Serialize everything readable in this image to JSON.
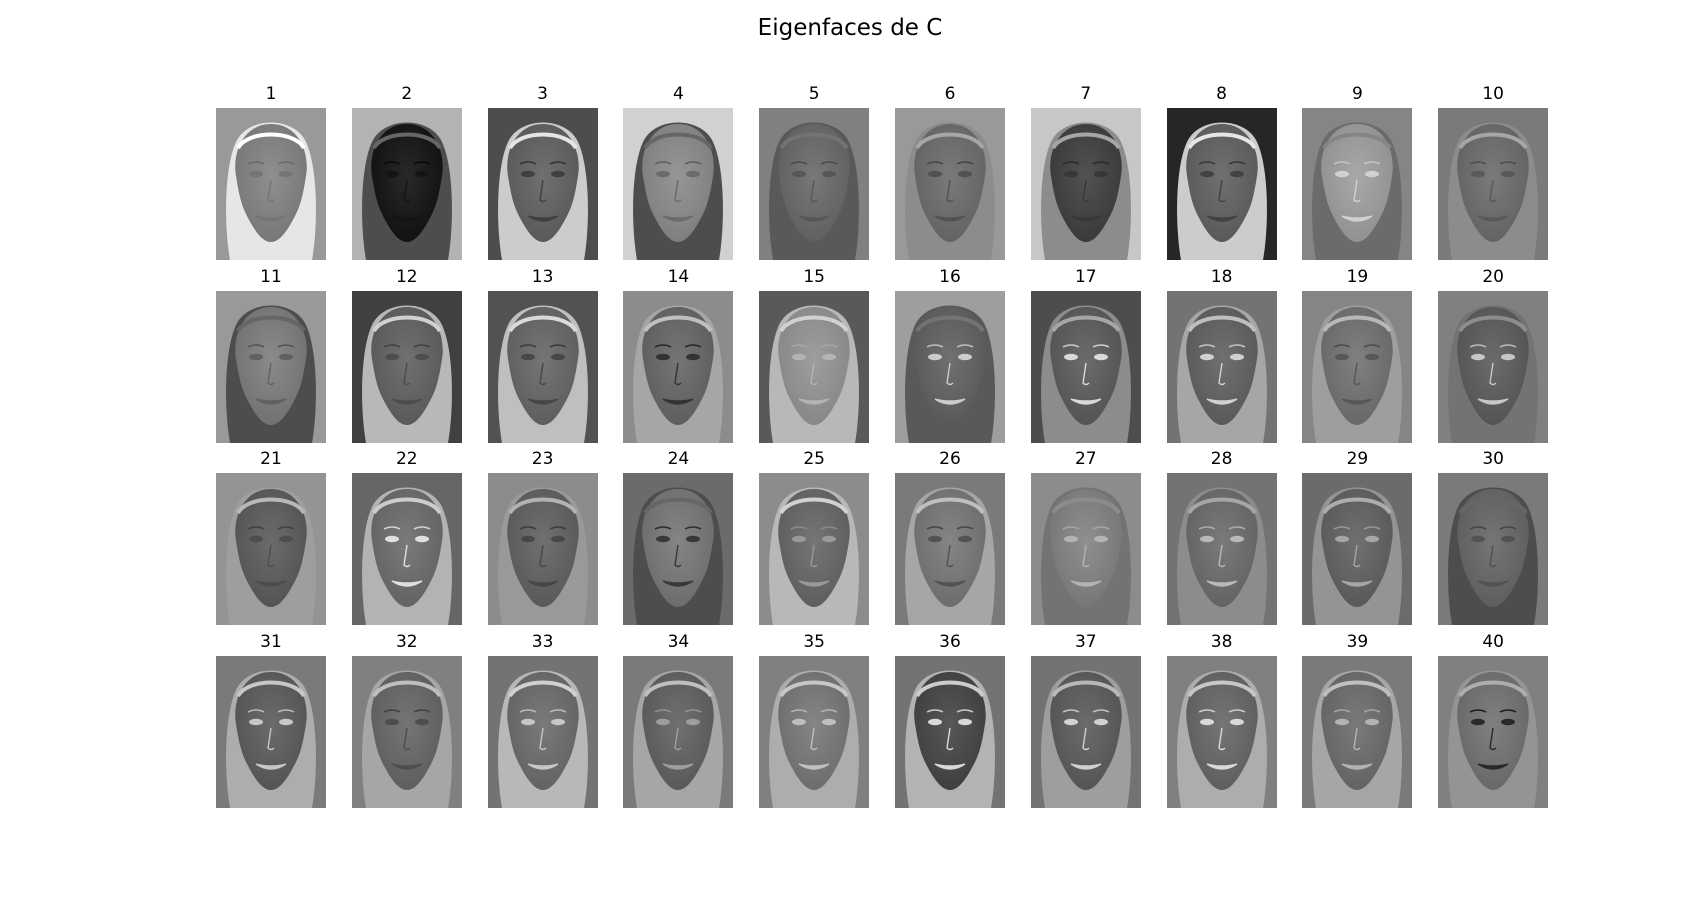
{
  "figure": {
    "title": "Eigenfaces de C"
  },
  "eigenfaces": [
    {
      "label": "1",
      "background": 0.6,
      "face": 0.52,
      "hair": 0.9,
      "features": 0.46
    },
    {
      "label": "2",
      "background": 0.7,
      "face": 0.12,
      "hair": 0.3,
      "features": 0.08
    },
    {
      "label": "3",
      "background": 0.3,
      "face": 0.4,
      "hair": 0.8,
      "features": 0.25
    },
    {
      "label": "4",
      "background": 0.82,
      "face": 0.55,
      "hair": 0.3,
      "features": 0.42
    },
    {
      "label": "5",
      "background": 0.5,
      "face": 0.43,
      "hair": 0.35,
      "features": 0.34
    },
    {
      "label": "6",
      "background": 0.6,
      "face": 0.44,
      "hair": 0.55,
      "features": 0.32
    },
    {
      "label": "7",
      "background": 0.78,
      "face": 0.28,
      "hair": 0.55,
      "features": 0.22
    },
    {
      "label": "8",
      "background": 0.15,
      "face": 0.4,
      "hair": 0.8,
      "features": 0.26
    },
    {
      "label": "9",
      "background": 0.52,
      "face": 0.62,
      "hair": 0.42,
      "features": 0.82
    },
    {
      "label": "10",
      "background": 0.48,
      "face": 0.44,
      "hair": 0.55,
      "features": 0.35
    },
    {
      "label": "11",
      "background": 0.6,
      "face": 0.5,
      "hair": 0.3,
      "features": 0.38
    },
    {
      "label": "12",
      "background": 0.25,
      "face": 0.4,
      "hair": 0.72,
      "features": 0.3
    },
    {
      "label": "13",
      "background": 0.32,
      "face": 0.42,
      "hair": 0.75,
      "features": 0.28
    },
    {
      "label": "14",
      "background": 0.55,
      "face": 0.42,
      "hair": 0.65,
      "features": 0.2
    },
    {
      "label": "15",
      "background": 0.35,
      "face": 0.58,
      "hair": 0.72,
      "features": 0.7
    },
    {
      "label": "16",
      "background": 0.62,
      "face": 0.4,
      "hair": 0.35,
      "features": 0.8
    },
    {
      "label": "17",
      "background": 0.3,
      "face": 0.38,
      "hair": 0.55,
      "features": 0.85
    },
    {
      "label": "18",
      "background": 0.45,
      "face": 0.4,
      "hair": 0.65,
      "features": 0.82
    },
    {
      "label": "19",
      "background": 0.52,
      "face": 0.46,
      "hair": 0.62,
      "features": 0.34
    },
    {
      "label": "20",
      "background": 0.5,
      "face": 0.38,
      "hair": 0.45,
      "features": 0.78
    },
    {
      "label": "21",
      "background": 0.58,
      "face": 0.38,
      "hair": 0.62,
      "features": 0.3
    },
    {
      "label": "22",
      "background": 0.4,
      "face": 0.44,
      "hair": 0.7,
      "features": 0.88
    },
    {
      "label": "23",
      "background": 0.55,
      "face": 0.4,
      "hair": 0.6,
      "features": 0.28
    },
    {
      "label": "24",
      "background": 0.42,
      "face": 0.48,
      "hair": 0.3,
      "features": 0.22
    },
    {
      "label": "25",
      "background": 0.55,
      "face": 0.42,
      "hair": 0.72,
      "features": 0.6
    },
    {
      "label": "26",
      "background": 0.48,
      "face": 0.48,
      "hair": 0.65,
      "features": 0.32
    },
    {
      "label": "27",
      "background": 0.55,
      "face": 0.52,
      "hair": 0.45,
      "features": 0.7
    },
    {
      "label": "28",
      "background": 0.45,
      "face": 0.44,
      "hair": 0.55,
      "features": 0.72
    },
    {
      "label": "29",
      "background": 0.42,
      "face": 0.4,
      "hair": 0.58,
      "features": 0.65
    },
    {
      "label": "30",
      "background": 0.48,
      "face": 0.42,
      "hair": 0.3,
      "features": 0.32
    },
    {
      "label": "31",
      "background": 0.48,
      "face": 0.38,
      "hair": 0.68,
      "features": 0.78
    },
    {
      "label": "32",
      "background": 0.5,
      "face": 0.42,
      "hair": 0.65,
      "features": 0.3
    },
    {
      "label": "33",
      "background": 0.45,
      "face": 0.44,
      "hair": 0.72,
      "features": 0.78
    },
    {
      "label": "34",
      "background": 0.48,
      "face": 0.4,
      "hair": 0.65,
      "features": 0.62
    },
    {
      "label": "35",
      "background": 0.5,
      "face": 0.48,
      "hair": 0.68,
      "features": 0.75
    },
    {
      "label": "36",
      "background": 0.45,
      "face": 0.3,
      "hair": 0.7,
      "features": 0.85
    },
    {
      "label": "37",
      "background": 0.45,
      "face": 0.38,
      "hair": 0.62,
      "features": 0.82
    },
    {
      "label": "38",
      "background": 0.5,
      "face": 0.42,
      "hair": 0.68,
      "features": 0.85
    },
    {
      "label": "39",
      "background": 0.48,
      "face": 0.44,
      "hair": 0.65,
      "features": 0.7
    },
    {
      "label": "40",
      "background": 0.5,
      "face": 0.46,
      "hair": 0.58,
      "features": 0.16
    }
  ]
}
